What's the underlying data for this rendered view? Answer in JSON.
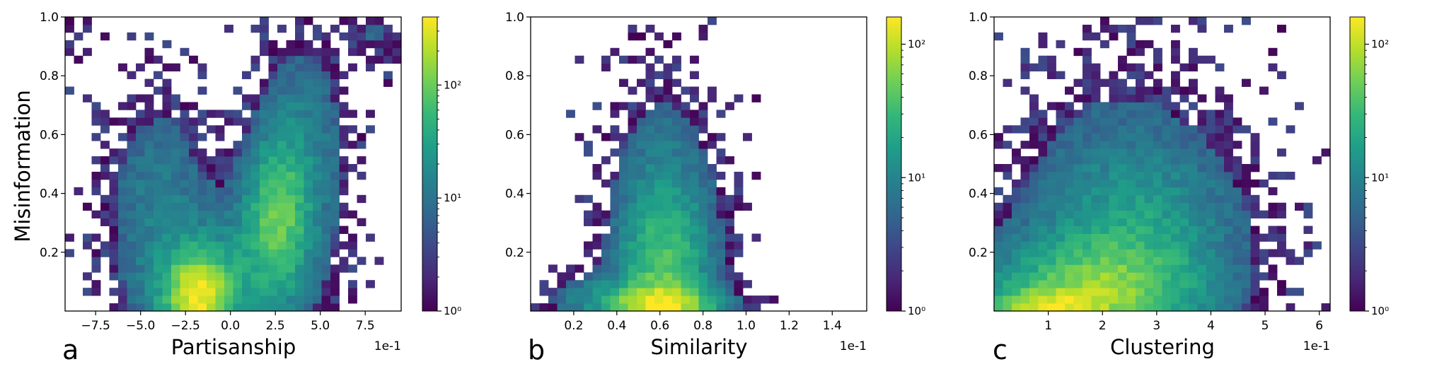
{
  "figure": {
    "ylabel": "Misinformation",
    "colormap": [
      "#440154",
      "#482878",
      "#3e4989",
      "#31688e",
      "#26828e",
      "#1f9e89",
      "#35b779",
      "#6ece58",
      "#b5de2b",
      "#fde725"
    ]
  },
  "chart_data": [
    {
      "type": "heatmap",
      "panel": "a",
      "xlabel": "Partisanship",
      "offset_text": "1e-1",
      "xlim": [
        -9.2,
        9.5
      ],
      "ylim": [
        0,
        1.0
      ],
      "xticks": [
        -7.5,
        -5.0,
        -2.5,
        0.0,
        2.5,
        5.0,
        7.5
      ],
      "xtick_labels": [
        "−7.5",
        "−5.0",
        "−2.5",
        "0.0",
        "2.5",
        "5.0",
        "7.5"
      ],
      "yticks": [
        0.2,
        0.4,
        0.6,
        0.8,
        1.0
      ],
      "ytick_labels": [
        "0.2",
        "0.4",
        "0.6",
        "0.8",
        "1.0"
      ],
      "colorbar": {
        "scale": "log",
        "max": 400,
        "ticks": [
          1,
          10,
          100
        ],
        "tick_labels": [
          "10⁰",
          "10¹",
          "10²"
        ]
      },
      "density_components": [
        {
          "cx": -1.8,
          "cy": 0.05,
          "sx": 1.3,
          "sy": 0.1,
          "w": 1.0
        },
        {
          "cx": 2.6,
          "cy": 0.32,
          "sx": 1.2,
          "sy": 0.18,
          "w": 0.6
        },
        {
          "cx": 4.0,
          "cy": 0.55,
          "sx": 1.6,
          "sy": 0.25,
          "w": 0.22
        },
        {
          "cx": -4.0,
          "cy": 0.35,
          "sx": 1.9,
          "sy": 0.25,
          "w": 0.2
        },
        {
          "cx": 0.2,
          "cy": 0.12,
          "sx": 2.8,
          "sy": 0.16,
          "w": 0.25
        },
        {
          "cx": 8.0,
          "cy": 0.95,
          "sx": 1.3,
          "sy": 0.1,
          "w": 0.1
        },
        {
          "cx": -8.5,
          "cy": 0.95,
          "sx": 0.8,
          "sy": 0.08,
          "w": 0.06
        }
      ]
    },
    {
      "type": "heatmap",
      "panel": "b",
      "xlabel": "Similarity",
      "offset_text": "1e-1",
      "xlim": [
        0.0,
        1.56
      ],
      "ylim": [
        0,
        1.0
      ],
      "xticks": [
        0.2,
        0.4,
        0.6,
        0.8,
        1.0,
        1.2,
        1.4
      ],
      "xtick_labels": [
        "0.2",
        "0.4",
        "0.6",
        "0.8",
        "1.0",
        "1.2",
        "1.4"
      ],
      "yticks": [
        0.2,
        0.4,
        0.6,
        0.8,
        1.0
      ],
      "ytick_labels": [
        "0.2",
        "0.4",
        "0.6",
        "0.8",
        "1.0"
      ],
      "colorbar": {
        "scale": "log",
        "max": 160,
        "ticks": [
          1,
          10,
          100
        ],
        "tick_labels": [
          "10⁰",
          "10¹",
          "10²"
        ]
      },
      "density_components": [
        {
          "cx": 0.62,
          "cy": 0.1,
          "sx": 0.14,
          "sy": 0.24,
          "w": 1.0
        },
        {
          "cx": 0.62,
          "cy": 0.02,
          "sx": 0.2,
          "sy": 0.04,
          "w": 0.8
        },
        {
          "cx": 0.62,
          "cy": 0.5,
          "sx": 0.16,
          "sy": 0.25,
          "w": 0.15
        },
        {
          "cx": 0.35,
          "cy": 0.05,
          "sx": 0.18,
          "sy": 0.05,
          "w": 0.35
        }
      ]
    },
    {
      "type": "heatmap",
      "panel": "c",
      "xlabel": "Clustering",
      "offset_text": "1e-1",
      "xlim": [
        0.0,
        6.2
      ],
      "ylim": [
        0,
        1.0
      ],
      "xticks": [
        1,
        2,
        3,
        4,
        5,
        6
      ],
      "xtick_labels": [
        "1",
        "2",
        "3",
        "4",
        "5",
        "6"
      ],
      "yticks": [
        0.2,
        0.4,
        0.6,
        0.8,
        1.0
      ],
      "ytick_labels": [
        "0.2",
        "0.4",
        "0.6",
        "0.8",
        "1.0"
      ],
      "colorbar": {
        "scale": "log",
        "max": 160,
        "ticks": [
          1,
          10,
          100
        ],
        "tick_labels": [
          "10⁰",
          "10¹",
          "10²"
        ]
      },
      "density_components": [
        {
          "cx": 1.8,
          "cy": 0.05,
          "sx": 1.3,
          "sy": 0.12,
          "w": 1.0
        },
        {
          "cx": 0.8,
          "cy": 0.01,
          "sx": 0.7,
          "sy": 0.04,
          "w": 0.8
        },
        {
          "cx": 2.6,
          "cy": 0.28,
          "sx": 1.2,
          "sy": 0.18,
          "w": 0.5
        },
        {
          "cx": 2.4,
          "cy": 0.6,
          "sx": 1.3,
          "sy": 0.25,
          "w": 0.12
        }
      ]
    }
  ]
}
